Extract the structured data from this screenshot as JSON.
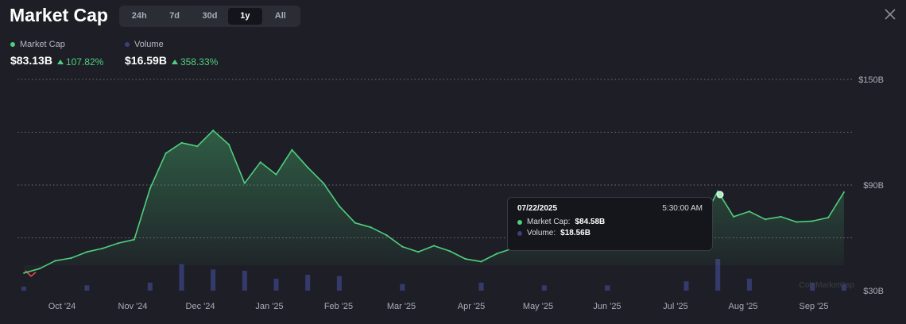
{
  "header": {
    "title": "Market Cap",
    "tabs": [
      {
        "label": "24h",
        "active": false
      },
      {
        "label": "7d",
        "active": false
      },
      {
        "label": "30d",
        "active": false
      },
      {
        "label": "1y",
        "active": true
      },
      {
        "label": "All",
        "active": false
      }
    ]
  },
  "legend": {
    "market_cap": {
      "label": "Market Cap",
      "value": "$83.13B",
      "change": "107.82%",
      "color": "#4fcf7e"
    },
    "volume": {
      "label": "Volume",
      "value": "$16.59B",
      "change": "358.33%",
      "color": "#3a3f7a"
    }
  },
  "tooltip": {
    "date": "07/22/2025",
    "time": "5:30:00 AM",
    "market_cap_label": "Market Cap:",
    "market_cap_value": "$84.58B",
    "volume_label": "Volume:",
    "volume_value": "$18.56B"
  },
  "watermark": "CoinMarketCap",
  "colors": {
    "background": "#1e1f26",
    "line": "#4fcf7e",
    "volume": "#3a3f7a",
    "negative": "#e24a4a",
    "grid": "#6b6d78"
  },
  "chart_data": {
    "type": "line",
    "series": [
      {
        "name": "Market Cap",
        "x": [
          "2024-09-16",
          "2024-09-23",
          "2024-09-30",
          "2024-10-07",
          "2024-10-14",
          "2024-10-21",
          "2024-10-28",
          "2024-11-04",
          "2024-11-11",
          "2024-11-18",
          "2024-11-25",
          "2024-12-02",
          "2024-12-09",
          "2024-12-16",
          "2024-12-23",
          "2024-12-30",
          "2025-01-06",
          "2025-01-13",
          "2025-01-20",
          "2025-01-27",
          "2025-02-03",
          "2025-02-10",
          "2025-02-17",
          "2025-02-24",
          "2025-03-03",
          "2025-03-10",
          "2025-03-17",
          "2025-03-24",
          "2025-03-31",
          "2025-04-07",
          "2025-04-14",
          "2025-04-21",
          "2025-04-28",
          "2025-05-05",
          "2025-05-12",
          "2025-05-19",
          "2025-05-26",
          "2025-06-02",
          "2025-06-09",
          "2025-06-16",
          "2025-06-23",
          "2025-06-30",
          "2025-07-07",
          "2025-07-14",
          "2025-07-21",
          "2025-07-28",
          "2025-08-04",
          "2025-08-11",
          "2025-08-18",
          "2025-08-25",
          "2025-09-01",
          "2025-09-08",
          "2025-09-15"
        ],
        "values": [
          40.0,
          42.5,
          47.0,
          48.5,
          52.0,
          54.0,
          57.0,
          59.0,
          88.0,
          108.0,
          114.0,
          112.0,
          121.0,
          113.0,
          91.0,
          103.0,
          96.0,
          110.0,
          100.0,
          91.0,
          78.0,
          68.5,
          66.0,
          61.5,
          55.0,
          52.0,
          55.5,
          52.5,
          48.0,
          46.5,
          51.0,
          54.0,
          59.0,
          62.0,
          62.5,
          59.5,
          61.0,
          59.0,
          57.5,
          56.5,
          55.5,
          58.0,
          65.0,
          69.5,
          86.5,
          72.0,
          75.0,
          70.5,
          72.0,
          69.0,
          69.5,
          71.5,
          86.0
        ]
      },
      {
        "name": "Volume",
        "x": [
          "2024-09-16",
          "2024-10-14",
          "2024-11-11",
          "2024-11-25",
          "2024-12-09",
          "2024-12-23",
          "2025-01-06",
          "2025-01-20",
          "2025-02-03",
          "2025-03-03",
          "2025-04-07",
          "2025-05-05",
          "2025-06-02",
          "2025-07-07",
          "2025-07-21",
          "2025-08-04",
          "2025-09-01",
          "2025-09-15"
        ],
        "values": [
          1.5,
          2.0,
          3.0,
          10.0,
          8.0,
          7.5,
          4.5,
          6.0,
          5.5,
          2.5,
          3.0,
          2.0,
          2.0,
          3.5,
          18.56,
          4.5,
          3.0,
          2.5
        ]
      }
    ],
    "xticks": [
      "Oct '24",
      "Nov '24",
      "Dec '24",
      "Jan '25",
      "Feb '25",
      "Mar '25",
      "Apr '25",
      "May '25",
      "Jun '25",
      "Jul '25",
      "Aug '25",
      "Sep '25"
    ],
    "yticks": [
      "$30B",
      "$90B",
      "$150B"
    ],
    "ylim": [
      30,
      150
    ],
    "grid": true,
    "highlight": {
      "date": "2025-07-22",
      "value": 84.58
    }
  }
}
